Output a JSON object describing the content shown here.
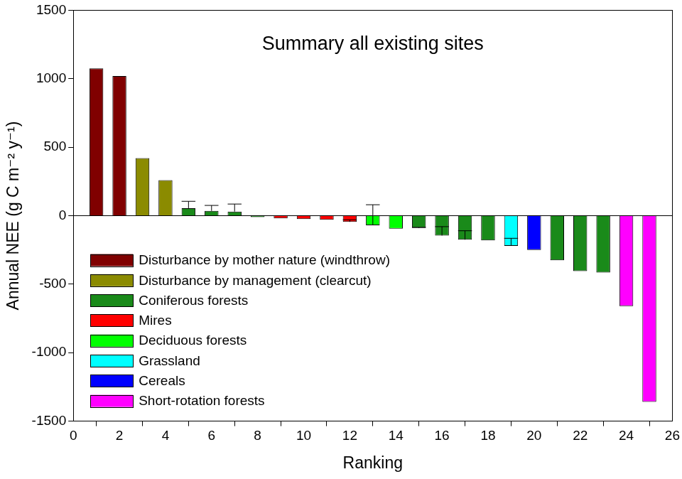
{
  "chart_data": {
    "type": "bar",
    "title": "Summary all existing sites",
    "x_label": "Ranking",
    "y_label": "Annual NEE (g C m⁻² y⁻¹)",
    "x": [
      1,
      2,
      3,
      4,
      5,
      6,
      7,
      8,
      9,
      10,
      11,
      12,
      13,
      14,
      15,
      16,
      17,
      18,
      19,
      20,
      21,
      22,
      23,
      24,
      25
    ],
    "xlim": [
      0,
      26
    ],
    "xticks": [
      0,
      2,
      4,
      6,
      8,
      10,
      12,
      14,
      16,
      18,
      20,
      22,
      24,
      26
    ],
    "ylim": [
      -1500,
      1500
    ],
    "yticks": [
      -1500,
      -1000,
      -500,
      0,
      500,
      1000,
      1500
    ],
    "grid": false,
    "legend": "lower left",
    "series": [
      {
        "name": "Disturbance by mother nature (windthrow)",
        "color": "#800000",
        "values": [
          1075,
          1020,
          null,
          null,
          null,
          null,
          null,
          null,
          null,
          null,
          null,
          null,
          null,
          null,
          null,
          null,
          null,
          null,
          null,
          null,
          null,
          null,
          null,
          null,
          null
        ],
        "errors": [
          null,
          null,
          null,
          null,
          null,
          null,
          null,
          null,
          null,
          null,
          null,
          null,
          null,
          null,
          null,
          null,
          null,
          null,
          null,
          null,
          null,
          null,
          null,
          null,
          null
        ]
      },
      {
        "name": "Disturbance by management (clearcut)",
        "color": "#8b8b00",
        "values": [
          null,
          null,
          420,
          260,
          null,
          null,
          null,
          null,
          null,
          null,
          null,
          null,
          null,
          null,
          null,
          null,
          null,
          null,
          null,
          null,
          null,
          null,
          null,
          null,
          null
        ],
        "errors": [
          null,
          null,
          null,
          null,
          null,
          null,
          null,
          null,
          null,
          null,
          null,
          null,
          null,
          null,
          null,
          null,
          null,
          null,
          null,
          null,
          null,
          null,
          null,
          null,
          null
        ]
      },
      {
        "name": "Coniferous forests",
        "color": "#1a8a1a",
        "values": [
          null,
          null,
          null,
          null,
          55,
          35,
          30,
          -10,
          null,
          null,
          null,
          null,
          null,
          null,
          -90,
          -145,
          -175,
          -180,
          null,
          null,
          -325,
          -405,
          -415,
          null,
          null
        ],
        "errors": [
          null,
          null,
          null,
          null,
          50,
          40,
          55,
          null,
          null,
          null,
          null,
          null,
          null,
          null,
          5,
          65,
          65,
          null,
          null,
          null,
          null,
          null,
          null,
          null,
          null
        ]
      },
      {
        "name": "Mires",
        "color": "#ff0000",
        "values": [
          null,
          null,
          null,
          null,
          null,
          null,
          null,
          null,
          -20,
          -25,
          -30,
          -45,
          null,
          null,
          null,
          null,
          null,
          null,
          null,
          null,
          null,
          null,
          null,
          null,
          null
        ],
        "errors": [
          null,
          null,
          null,
          null,
          null,
          null,
          null,
          null,
          null,
          null,
          null,
          15,
          null,
          null,
          null,
          null,
          null,
          null,
          null,
          null,
          null,
          null,
          null,
          null,
          null
        ]
      },
      {
        "name": "Deciduous forests",
        "color": "#00ff00",
        "values": [
          null,
          null,
          null,
          null,
          null,
          null,
          null,
          null,
          null,
          null,
          null,
          null,
          -70,
          -95,
          null,
          null,
          null,
          null,
          null,
          null,
          null,
          null,
          null,
          null,
          null
        ],
        "errors": [
          null,
          null,
          null,
          null,
          null,
          null,
          null,
          null,
          null,
          null,
          null,
          null,
          150,
          null,
          null,
          null,
          null,
          null,
          null,
          null,
          null,
          null,
          null,
          null,
          null
        ]
      },
      {
        "name": "Grassland",
        "color": "#00ffff",
        "values": [
          null,
          null,
          null,
          null,
          null,
          null,
          null,
          null,
          null,
          null,
          null,
          null,
          null,
          null,
          null,
          null,
          null,
          null,
          -220,
          null,
          null,
          null,
          null,
          null,
          null
        ],
        "errors": [
          null,
          null,
          null,
          null,
          null,
          null,
          null,
          null,
          null,
          null,
          null,
          null,
          null,
          null,
          null,
          null,
          null,
          null,
          55,
          null,
          null,
          null,
          null,
          null,
          null
        ]
      },
      {
        "name": "Cereals",
        "color": "#0000ff",
        "values": [
          null,
          null,
          null,
          null,
          null,
          null,
          null,
          null,
          null,
          null,
          null,
          null,
          null,
          null,
          null,
          null,
          null,
          null,
          null,
          -250,
          null,
          null,
          null,
          null,
          null
        ],
        "errors": [
          null,
          null,
          null,
          null,
          null,
          null,
          null,
          null,
          null,
          null,
          null,
          null,
          null,
          null,
          null,
          null,
          null,
          null,
          null,
          null,
          null,
          null,
          null,
          null,
          null
        ]
      },
      {
        "name": "Short-rotation forests",
        "color": "#ff00ff",
        "values": [
          null,
          null,
          null,
          null,
          null,
          null,
          null,
          null,
          null,
          null,
          null,
          null,
          null,
          null,
          null,
          null,
          null,
          null,
          null,
          null,
          null,
          null,
          null,
          -660,
          -1360
        ],
        "errors": [
          null,
          null,
          null,
          null,
          null,
          null,
          null,
          null,
          null,
          null,
          null,
          null,
          null,
          null,
          null,
          null,
          null,
          null,
          null,
          null,
          null,
          null,
          null,
          null,
          null
        ]
      }
    ]
  }
}
